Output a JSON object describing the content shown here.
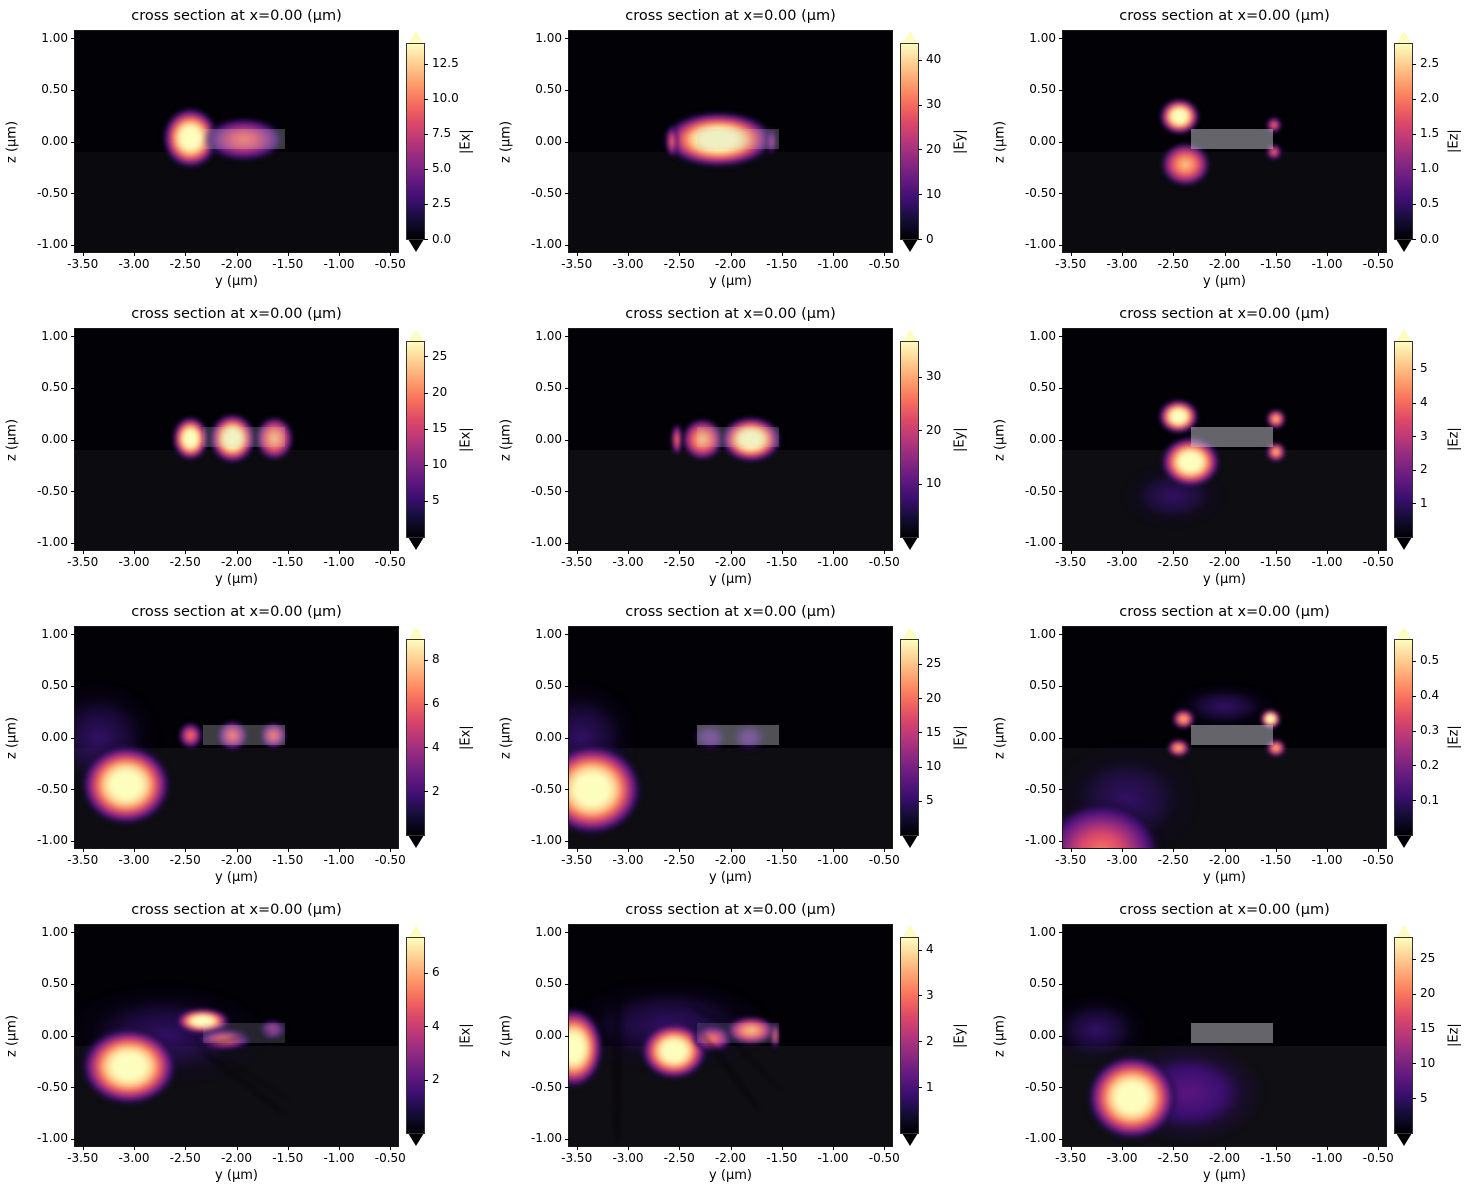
{
  "figure": {
    "background": "#ffffff",
    "rows": 4,
    "cols": 3,
    "colormap_name": "magma",
    "colormap_stops": [
      "#000004",
      "#140e36",
      "#3b0f70",
      "#641a80",
      "#8c2981",
      "#b73779",
      "#de4968",
      "#f7705c",
      "#fe9f6d",
      "#fecf92",
      "#fcfdbf"
    ]
  },
  "shared": {
    "title": "cross section at x=0.00 (μm)",
    "xlabel": "y (μm)",
    "ylabel": "z (μm)",
    "x_ticks": [
      "-3.50",
      "-3.00",
      "-2.50",
      "-2.00",
      "-1.50",
      "-1.00",
      "-0.50"
    ],
    "z_ticks": [
      "1.00",
      "0.50",
      "0.00",
      "-0.50",
      "-1.00"
    ],
    "x_range": [
      -3.575,
      -0.425
    ],
    "z_range": [
      1.07,
      -1.07
    ],
    "waveguide": {
      "y": [
        -2.33,
        -1.53
      ],
      "z": [
        0.12,
        -0.07
      ]
    },
    "substrate_top_z": -0.1
  },
  "chart_data": [
    {
      "row": 1,
      "col": 1,
      "type": "heatmap",
      "field": "|Ex|",
      "title": "cross section at x=0.00 (μm)",
      "xlabel": "y (μm)",
      "ylabel": "z (μm)",
      "colorbar": {
        "label": "|Ex|",
        "ticks": [
          "0.0",
          "2.5",
          "5.0",
          "7.5",
          "10.0",
          "12.5"
        ],
        "vmin": 0,
        "vmax": 13.9
      },
      "waveguide_opacity": 0.28,
      "substrate_opacity": 0.035,
      "features": [
        {
          "kind": "blob",
          "y": -2.45,
          "z": 0.03,
          "ry": 0.28,
          "rz": 0.3,
          "i": 1.0
        },
        {
          "kind": "blob",
          "y": -1.93,
          "z": 0.02,
          "ry": 0.4,
          "rz": 0.22,
          "i": 0.72
        }
      ]
    },
    {
      "row": 1,
      "col": 2,
      "type": "heatmap",
      "field": "|Ey|",
      "title": "cross section at x=0.00 (μm)",
      "xlabel": "y (μm)",
      "ylabel": "z (μm)",
      "colorbar": {
        "label": "|Ey|",
        "ticks": [
          "0",
          "10",
          "20",
          "30",
          "40"
        ],
        "vmin": 0,
        "vmax": 43.5
      },
      "waveguide_opacity": 0.25,
      "substrate_opacity": 0.035,
      "features": [
        {
          "kind": "blob",
          "y": -2.12,
          "z": 0.02,
          "ry": 0.55,
          "rz": 0.28,
          "i": 1.0
        },
        {
          "kind": "blob",
          "y": -2.57,
          "z": 0.0,
          "ry": 0.06,
          "rz": 0.16,
          "i": 0.55
        },
        {
          "kind": "blob",
          "y": -1.6,
          "z": 0.0,
          "ry": 0.05,
          "rz": 0.14,
          "i": 0.45
        }
      ]
    },
    {
      "row": 1,
      "col": 3,
      "type": "heatmap",
      "field": "|Ez|",
      "title": "cross section at x=0.00 (μm)",
      "xlabel": "y (μm)",
      "ylabel": "z (μm)",
      "colorbar": {
        "label": "|Ez|",
        "ticks": [
          "0.0",
          "0.5",
          "1.0",
          "1.5",
          "2.0",
          "2.5"
        ],
        "vmin": 0,
        "vmax": 2.78
      },
      "waveguide_opacity": 0.5,
      "substrate_opacity": 0.04,
      "features": [
        {
          "kind": "blob",
          "y": -2.44,
          "z": 0.24,
          "ry": 0.2,
          "rz": 0.18,
          "i": 0.97
        },
        {
          "kind": "blob",
          "y": -2.38,
          "z": -0.22,
          "ry": 0.25,
          "rz": 0.22,
          "i": 0.92
        },
        {
          "kind": "blob",
          "y": -1.52,
          "z": 0.16,
          "ry": 0.08,
          "rz": 0.08,
          "i": 0.65
        },
        {
          "kind": "blob",
          "y": -1.52,
          "z": -0.1,
          "ry": 0.08,
          "rz": 0.08,
          "i": 0.5
        }
      ]
    },
    {
      "row": 2,
      "col": 1,
      "type": "heatmap",
      "field": "|Ex|",
      "title": "cross section at x=0.00 (μm)",
      "xlabel": "y (μm)",
      "ylabel": "z (μm)",
      "colorbar": {
        "label": "|Ex|",
        "ticks": [
          "5",
          "10",
          "15",
          "20",
          "25"
        ],
        "vmin": 0,
        "vmax": 27
      },
      "waveguide_opacity": 0.22,
      "substrate_opacity": 0.045,
      "features": [
        {
          "kind": "blob",
          "y": -2.45,
          "z": 0.01,
          "ry": 0.18,
          "rz": 0.22,
          "i": 0.95
        },
        {
          "kind": "blob",
          "y": -2.04,
          "z": 0.01,
          "ry": 0.23,
          "rz": 0.25,
          "i": 1.0
        },
        {
          "kind": "blob",
          "y": -1.63,
          "z": 0.01,
          "ry": 0.19,
          "rz": 0.22,
          "i": 0.88
        }
      ]
    },
    {
      "row": 2,
      "col": 2,
      "type": "heatmap",
      "field": "|Ey|",
      "title": "cross section at x=0.00 (μm)",
      "xlabel": "y (μm)",
      "ylabel": "z (μm)",
      "colorbar": {
        "label": "|Ey|",
        "ticks": [
          "10",
          "20",
          "30"
        ],
        "vmin": 0,
        "vmax": 36.5
      },
      "waveguide_opacity": 0.22,
      "substrate_opacity": 0.05,
      "features": [
        {
          "kind": "blob",
          "y": -2.52,
          "z": 0.0,
          "ry": 0.06,
          "rz": 0.16,
          "i": 0.6
        },
        {
          "kind": "blob",
          "y": -2.27,
          "z": 0.0,
          "ry": 0.21,
          "rz": 0.21,
          "i": 0.92
        },
        {
          "kind": "blob",
          "y": -1.8,
          "z": 0.0,
          "ry": 0.3,
          "rz": 0.23,
          "i": 1.0
        }
      ]
    },
    {
      "row": 2,
      "col": 3,
      "type": "heatmap",
      "field": "|Ez|",
      "title": "cross section at x=0.00 (μm)",
      "xlabel": "y (μm)",
      "ylabel": "z (μm)",
      "colorbar": {
        "label": "|Ez|",
        "ticks": [
          "1",
          "2",
          "3",
          "4",
          "5"
        ],
        "vmin": 0,
        "vmax": 5.8
      },
      "waveguide_opacity": 0.5,
      "substrate_opacity": 0.05,
      "features": [
        {
          "kind": "blob",
          "y": -2.5,
          "z": -0.55,
          "ry": 0.5,
          "rz": 0.3,
          "i": 0.15
        },
        {
          "kind": "blob",
          "y": -2.45,
          "z": 0.22,
          "ry": 0.2,
          "rz": 0.17,
          "i": 1.0
        },
        {
          "kind": "blob",
          "y": -2.33,
          "z": -0.22,
          "ry": 0.3,
          "rz": 0.25,
          "i": 0.95
        },
        {
          "kind": "blob",
          "y": -1.5,
          "z": 0.2,
          "ry": 0.1,
          "rz": 0.1,
          "i": 0.9
        },
        {
          "kind": "blob",
          "y": -1.5,
          "z": -0.12,
          "ry": 0.1,
          "rz": 0.1,
          "i": 0.85
        }
      ]
    },
    {
      "row": 3,
      "col": 1,
      "type": "heatmap",
      "field": "|Ex|",
      "title": "cross section at x=0.00 (μm)",
      "xlabel": "y (μm)",
      "ylabel": "z (μm)",
      "colorbar": {
        "label": "|Ex|",
        "ticks": [
          "2",
          "4",
          "6",
          "8"
        ],
        "vmin": 0,
        "vmax": 8.9
      },
      "waveguide_opacity": 0.3,
      "substrate_opacity": 0.05,
      "features": [
        {
          "kind": "blob",
          "y": -3.35,
          "z": 0.0,
          "ry": 0.6,
          "rz": 0.55,
          "i": 0.15
        },
        {
          "kind": "blob",
          "y": -3.08,
          "z": -0.46,
          "ry": 0.45,
          "rz": 0.4,
          "i": 1.0
        },
        {
          "kind": "blob",
          "y": -2.45,
          "z": 0.02,
          "ry": 0.12,
          "rz": 0.13,
          "i": 0.5
        },
        {
          "kind": "blob",
          "y": -2.04,
          "z": 0.02,
          "ry": 0.15,
          "rz": 0.15,
          "i": 0.7
        },
        {
          "kind": "blob",
          "y": -1.64,
          "z": 0.02,
          "ry": 0.13,
          "rz": 0.13,
          "i": 0.5
        }
      ]
    },
    {
      "row": 3,
      "col": 2,
      "type": "heatmap",
      "field": "|Ey|",
      "title": "cross section at x=0.00 (μm)",
      "xlabel": "y (μm)",
      "ylabel": "z (μm)",
      "colorbar": {
        "label": "|Ey|",
        "ticks": [
          "5",
          "10",
          "15",
          "20",
          "25"
        ],
        "vmin": 0,
        "vmax": 28.5
      },
      "waveguide_opacity": 0.4,
      "substrate_opacity": 0.05,
      "features": [
        {
          "kind": "blob",
          "y": -3.45,
          "z": 0.0,
          "ry": 0.55,
          "rz": 0.55,
          "i": 0.16
        },
        {
          "kind": "blob",
          "y": -3.35,
          "z": -0.5,
          "ry": 0.5,
          "rz": 0.45,
          "i": 1.0
        },
        {
          "kind": "blob",
          "y": -2.2,
          "z": 0.0,
          "ry": 0.18,
          "rz": 0.14,
          "i": 0.28
        },
        {
          "kind": "blob",
          "y": -1.82,
          "z": 0.0,
          "ry": 0.18,
          "rz": 0.14,
          "i": 0.28
        }
      ]
    },
    {
      "row": 3,
      "col": 3,
      "type": "heatmap",
      "field": "|Ez|",
      "title": "cross section at x=0.00 (μm)",
      "xlabel": "y (μm)",
      "ylabel": "z (μm)",
      "colorbar": {
        "label": "|Ez|",
        "ticks": [
          "0.1",
          "0.2",
          "0.3",
          "0.4",
          "0.5"
        ],
        "vmin": 0,
        "vmax": 0.56
      },
      "waveguide_opacity": 0.5,
      "substrate_opacity": 0.05,
      "features": [
        {
          "kind": "blob",
          "y": -2.95,
          "z": -0.6,
          "ry": 0.7,
          "rz": 0.55,
          "i": 0.15
        },
        {
          "kind": "blob",
          "y": -3.2,
          "z": -1.1,
          "ry": 0.6,
          "rz": 0.5,
          "i": 0.55
        },
        {
          "kind": "blob",
          "y": -2.0,
          "z": 0.3,
          "ry": 0.5,
          "rz": 0.22,
          "i": 0.12
        },
        {
          "kind": "blob",
          "y": -2.4,
          "z": 0.18,
          "ry": 0.11,
          "rz": 0.1,
          "i": 0.9
        },
        {
          "kind": "blob",
          "y": -2.45,
          "z": -0.1,
          "ry": 0.11,
          "rz": 0.09,
          "i": 0.8
        },
        {
          "kind": "blob",
          "y": -1.55,
          "z": 0.18,
          "ry": 0.1,
          "rz": 0.1,
          "i": 1.0
        },
        {
          "kind": "blob",
          "y": -1.5,
          "z": -0.1,
          "ry": 0.1,
          "rz": 0.09,
          "i": 0.9
        }
      ]
    },
    {
      "row": 4,
      "col": 1,
      "type": "heatmap",
      "field": "|Ex|",
      "title": "cross section at x=0.00 (μm)",
      "xlabel": "y (μm)",
      "ylabel": "z (μm)",
      "colorbar": {
        "label": "|Ex|",
        "ticks": [
          "2",
          "4",
          "6"
        ],
        "vmin": 0,
        "vmax": 7.3
      },
      "waveguide_opacity": 0.18,
      "substrate_opacity": 0.055,
      "features": [
        {
          "kind": "blob",
          "y": -2.7,
          "z": 0.0,
          "ry": 1.0,
          "rz": 0.5,
          "i": 0.16
        },
        {
          "kind": "blob",
          "y": -3.05,
          "z": -0.3,
          "ry": 0.48,
          "rz": 0.38,
          "i": 1.0
        },
        {
          "kind": "blob",
          "y": -2.33,
          "z": 0.14,
          "ry": 0.27,
          "rz": 0.13,
          "i": 1.0
        },
        {
          "kind": "blob",
          "y": -2.12,
          "z": -0.04,
          "ry": 0.27,
          "rz": 0.1,
          "i": 0.6
        },
        {
          "kind": "blob",
          "y": -1.65,
          "z": 0.06,
          "ry": 0.13,
          "rz": 0.1,
          "i": 0.3
        },
        {
          "kind": "streak",
          "y1": -2.38,
          "z1": -0.1,
          "y2": -1.6,
          "z2": 0.06,
          "w": 4,
          "o": 0.5
        },
        {
          "kind": "streak",
          "y1": -2.36,
          "z1": -0.12,
          "y2": -1.5,
          "z2": -0.78,
          "w": 5,
          "o": 0.5
        },
        {
          "kind": "streak",
          "y1": -2.15,
          "z1": -0.2,
          "y2": -1.45,
          "z2": -0.65,
          "w": 4,
          "o": 0.3
        }
      ]
    },
    {
      "row": 4,
      "col": 2,
      "type": "heatmap",
      "field": "|Ey|",
      "title": "cross section at x=0.00 (μm)",
      "xlabel": "y (μm)",
      "ylabel": "z (μm)",
      "colorbar": {
        "label": "|Ey|",
        "ticks": [
          "1",
          "2",
          "3",
          "4"
        ],
        "vmin": 0,
        "vmax": 4.25
      },
      "waveguide_opacity": 0.15,
      "substrate_opacity": 0.055,
      "features": [
        {
          "kind": "blob",
          "y": -2.6,
          "z": 0.1,
          "ry": 1.0,
          "rz": 0.45,
          "i": 0.15
        },
        {
          "kind": "blob",
          "y": -3.53,
          "z": -0.12,
          "ry": 0.3,
          "rz": 0.4,
          "i": 1.0
        },
        {
          "kind": "blob",
          "y": -2.55,
          "z": -0.15,
          "ry": 0.33,
          "rz": 0.28,
          "i": 1.0
        },
        {
          "kind": "blob",
          "y": -2.18,
          "z": -0.03,
          "ry": 0.2,
          "rz": 0.13,
          "i": 0.62
        },
        {
          "kind": "blob",
          "y": -1.8,
          "z": 0.05,
          "ry": 0.24,
          "rz": 0.14,
          "i": 0.8
        },
        {
          "kind": "blob",
          "y": -1.57,
          "z": 0.0,
          "ry": 0.04,
          "rz": 0.13,
          "i": 0.7
        },
        {
          "kind": "streak",
          "y1": -3.1,
          "z1": 1.07,
          "y2": -3.1,
          "z2": -1.07,
          "w": 9,
          "o": 0.45
        },
        {
          "kind": "streak",
          "y1": -2.42,
          "z1": 0.3,
          "y2": -2.05,
          "z2": 0.12,
          "w": 4,
          "o": 0.5
        },
        {
          "kind": "streak",
          "y1": -2.3,
          "z1": 0.05,
          "y2": -1.7,
          "z2": -0.75,
          "w": 5,
          "o": 0.5
        },
        {
          "kind": "streak",
          "y1": -2.05,
          "z1": 0.02,
          "y2": -1.5,
          "z2": -0.55,
          "w": 4,
          "o": 0.4
        }
      ]
    },
    {
      "row": 4,
      "col": 3,
      "type": "heatmap",
      "field": "|Ez|",
      "title": "cross section at x=0.00 (μm)",
      "xlabel": "y (μm)",
      "ylabel": "z (μm)",
      "colorbar": {
        "label": "|Ez|",
        "ticks": [
          "5",
          "10",
          "15",
          "20",
          "25"
        ],
        "vmin": 0,
        "vmax": 28
      },
      "waveguide_opacity": 0.5,
      "substrate_opacity": 0.06,
      "features": [
        {
          "kind": "blob",
          "y": -3.25,
          "z": 0.05,
          "ry": 0.5,
          "rz": 0.35,
          "i": 0.14
        },
        {
          "kind": "blob",
          "y": -2.35,
          "z": -0.55,
          "ry": 0.75,
          "rz": 0.5,
          "i": 0.2
        },
        {
          "kind": "blob",
          "y": -2.9,
          "z": -0.6,
          "ry": 0.45,
          "rz": 0.42,
          "i": 1.0
        }
      ]
    }
  ]
}
